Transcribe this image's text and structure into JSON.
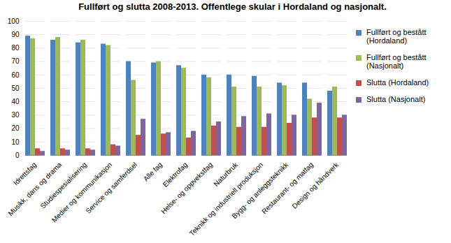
{
  "chart_data": {
    "type": "bar",
    "title": "Fullført og slutta 2008-2013. Offentlege skular i Hordaland og nasjonalt.",
    "categories": [
      "Idrettsfag",
      "Musikk, dans og drama",
      "Studiespesialisering",
      "Medier og kommunikasjon",
      "Service og samferdsel",
      "Alle fag",
      "Elektrofag",
      "Helse- og oppvekstfag",
      "Naturbruk",
      "Teknikk og industriell produksjon",
      "Bygg- og anleggsteknikk",
      "Restaurant- og matfag",
      "Design og håndverk"
    ],
    "series": [
      {
        "name": "Fullført og bestått (Hordaland)",
        "color": "#4f81bd",
        "values": [
          89,
          86,
          84,
          83,
          70,
          69,
          67,
          60,
          60,
          59,
          54,
          54,
          48
        ]
      },
      {
        "name": "Fullført og bestått (Nasjonalt)",
        "color": "#9bbb59",
        "values": [
          87,
          88,
          86,
          82,
          56,
          70,
          65,
          58,
          51,
          51,
          52,
          42,
          51
        ]
      },
      {
        "name": "Slutta (Hordaland)",
        "color": "#c0504d",
        "values": [
          5,
          5,
          5,
          8,
          15,
          16,
          13,
          22,
          21,
          21,
          24,
          28,
          28
        ]
      },
      {
        "name": "Slutta (Nasjonalt)",
        "color": "#8064a2",
        "values": [
          3,
          4,
          4,
          7,
          27,
          17,
          18,
          25,
          29,
          31,
          30,
          39,
          30
        ]
      }
    ],
    "ylim": [
      0,
      100
    ],
    "yticks": [
      0,
      10,
      20,
      30,
      40,
      50,
      60,
      70,
      80,
      90,
      100
    ],
    "grid": true,
    "legend": "right"
  }
}
